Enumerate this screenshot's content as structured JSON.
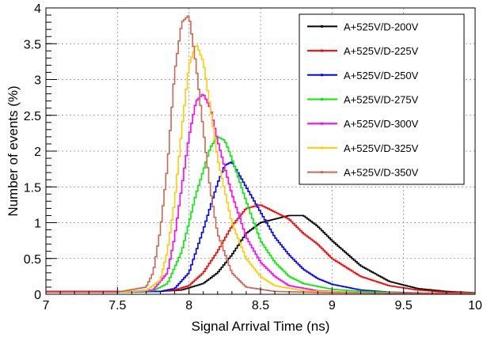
{
  "chart_data": {
    "type": "line",
    "title": "",
    "xlabel": "Signal Arrival Time (ns)",
    "ylabel": "Number of events (%)",
    "xlim": [
      7,
      10
    ],
    "ylim": [
      0,
      4
    ],
    "xticks": [
      "7",
      "7.5",
      "8",
      "8.5",
      "9",
      "9.5",
      "10"
    ],
    "yticks": [
      "0",
      "0.5",
      "1",
      "1.5",
      "2",
      "2.5",
      "3",
      "3.5",
      "4"
    ],
    "grid": true,
    "legend_position": "top-right",
    "series": [
      {
        "name": "A+525V/D-200V",
        "color": "#000000",
        "x": [
          7.0,
          7.5,
          7.8,
          7.95,
          8.1,
          8.2,
          8.3,
          8.4,
          8.5,
          8.6,
          8.7,
          8.8,
          8.9,
          9.0,
          9.2,
          9.4,
          9.6,
          9.8,
          10.0
        ],
        "y": [
          0.04,
          0.04,
          0.04,
          0.06,
          0.15,
          0.3,
          0.55,
          0.85,
          1.0,
          1.05,
          1.1,
          1.1,
          0.95,
          0.75,
          0.4,
          0.18,
          0.08,
          0.04,
          0.02
        ]
      },
      {
        "name": "A+525V/D-225V",
        "color": "#ff0000",
        "x": [
          7.0,
          7.5,
          7.8,
          7.9,
          8.0,
          8.1,
          8.2,
          8.3,
          8.4,
          8.5,
          8.6,
          8.7,
          8.8,
          8.9,
          9.0,
          9.2,
          9.4,
          9.6,
          9.8,
          10.0
        ],
        "y": [
          0.04,
          0.04,
          0.04,
          0.06,
          0.12,
          0.3,
          0.6,
          0.95,
          1.2,
          1.25,
          1.15,
          1.05,
          0.85,
          0.7,
          0.5,
          0.25,
          0.12,
          0.06,
          0.03,
          0.02
        ]
      },
      {
        "name": "A+525V/D-250V",
        "color": "#0000ff",
        "x": [
          7.0,
          7.5,
          7.8,
          7.9,
          8.0,
          8.1,
          8.2,
          8.25,
          8.3,
          8.4,
          8.5,
          8.6,
          8.7,
          8.8,
          8.9,
          9.0,
          9.2,
          9.4,
          9.6,
          10.0
        ],
        "y": [
          0.03,
          0.03,
          0.04,
          0.08,
          0.3,
          0.9,
          1.55,
          1.8,
          1.85,
          1.5,
          1.15,
          0.8,
          0.55,
          0.35,
          0.22,
          0.14,
          0.06,
          0.03,
          0.02,
          0.01
        ]
      },
      {
        "name": "A+525V/D-275V",
        "color": "#00ee00",
        "x": [
          7.0,
          7.5,
          7.75,
          7.85,
          7.95,
          8.05,
          8.15,
          8.2,
          8.25,
          8.3,
          8.4,
          8.5,
          8.6,
          8.7,
          8.8,
          9.0,
          9.2,
          9.5,
          10.0
        ],
        "y": [
          0.03,
          0.03,
          0.05,
          0.15,
          0.6,
          1.4,
          2.05,
          2.2,
          2.15,
          1.9,
          1.3,
          0.75,
          0.45,
          0.25,
          0.15,
          0.07,
          0.04,
          0.02,
          0.01
        ]
      },
      {
        "name": "A+525V/D-300V",
        "color": "#ff00ff",
        "x": [
          7.0,
          7.5,
          7.75,
          7.85,
          7.9,
          7.95,
          8.0,
          8.05,
          8.1,
          8.15,
          8.2,
          8.3,
          8.4,
          8.5,
          8.6,
          8.7,
          8.9,
          9.2,
          10.0
        ],
        "y": [
          0.03,
          0.03,
          0.06,
          0.3,
          0.8,
          1.5,
          2.2,
          2.7,
          2.8,
          2.6,
          2.15,
          1.4,
          0.8,
          0.45,
          0.25,
          0.12,
          0.05,
          0.02,
          0.01
        ]
      },
      {
        "name": "A+525V/D-325V",
        "color": "#ffcc00",
        "x": [
          7.0,
          7.5,
          7.7,
          7.8,
          7.85,
          7.9,
          7.95,
          8.0,
          8.05,
          8.1,
          8.15,
          8.2,
          8.3,
          8.4,
          8.5,
          8.6,
          8.8,
          9.2,
          10.0
        ],
        "y": [
          0.03,
          0.03,
          0.05,
          0.2,
          0.6,
          1.3,
          2.3,
          3.2,
          3.5,
          3.25,
          2.6,
          1.9,
          1.0,
          0.5,
          0.25,
          0.12,
          0.05,
          0.02,
          0.01
        ]
      },
      {
        "name": "A+525V/D-350V",
        "color": "#cc6655",
        "x": [
          7.0,
          7.5,
          7.7,
          7.75,
          7.8,
          7.85,
          7.9,
          7.95,
          8.0,
          8.05,
          8.1,
          8.15,
          8.2,
          8.3,
          8.4,
          8.6,
          9.0,
          10.0
        ],
        "y": [
          0.03,
          0.03,
          0.1,
          0.3,
          0.9,
          1.8,
          3.1,
          3.8,
          3.9,
          3.2,
          2.3,
          1.45,
          0.85,
          0.3,
          0.1,
          0.04,
          0.02,
          0.01
        ]
      }
    ]
  }
}
